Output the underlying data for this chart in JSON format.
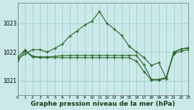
{
  "background_color": "#cbe9e9",
  "grid_color": "#9ecfcf",
  "line_color": "#2d6a2d",
  "xlabel": "Graphe pression niveau de la mer (hPa)",
  "xlabel_fontsize": 6.5,
  "xlim": [
    0,
    23
  ],
  "ylim": [
    1020.5,
    1023.7
  ],
  "yticks": [
    1021,
    1022,
    1023
  ],
  "xticks": [
    0,
    1,
    2,
    3,
    4,
    5,
    6,
    7,
    8,
    9,
    10,
    11,
    12,
    13,
    14,
    15,
    16,
    17,
    18,
    19,
    20,
    21,
    22,
    23
  ],
  "s1_x": [
    0,
    1,
    2,
    3,
    4,
    5,
    6,
    7,
    8,
    9,
    10,
    11,
    12,
    13,
    14,
    15,
    16,
    17,
    18,
    19,
    20,
    21,
    22,
    23
  ],
  "s1_y": [
    1021.75,
    1021.93,
    1022.08,
    1022.08,
    1022.0,
    1022.13,
    1022.27,
    1022.55,
    1022.73,
    1022.93,
    1023.07,
    1023.4,
    1023.0,
    1022.8,
    1022.57,
    1022.2,
    1022.0,
    1021.8,
    1021.53,
    1021.63,
    1021.08,
    1022.0,
    1022.1,
    1022.15
  ],
  "s2_x": [
    0,
    1,
    2,
    3,
    4,
    5,
    6,
    7,
    8,
    9,
    10,
    11,
    12,
    13,
    14,
    15,
    16,
    17,
    18,
    19,
    20,
    21,
    22,
    23
  ],
  "s2_y": [
    1021.82,
    1022.07,
    1021.85,
    1021.83,
    1021.83,
    1021.85,
    1021.87,
    1021.88,
    1021.88,
    1021.88,
    1021.88,
    1021.88,
    1021.88,
    1021.88,
    1021.88,
    1021.88,
    1021.88,
    1021.55,
    1021.05,
    1021.05,
    1021.12,
    1021.97,
    1022.1,
    1022.13
  ],
  "s3_x": [
    0,
    1,
    2,
    3,
    4,
    5,
    6,
    7,
    8,
    9,
    10,
    11,
    12,
    13,
    14,
    15,
    16,
    17,
    18,
    19,
    20,
    21,
    22,
    23
  ],
  "s3_y": [
    1021.7,
    1022.03,
    1021.82,
    1021.8,
    1021.8,
    1021.8,
    1021.8,
    1021.8,
    1021.8,
    1021.8,
    1021.8,
    1021.8,
    1021.8,
    1021.8,
    1021.8,
    1021.8,
    1021.68,
    1021.32,
    1021.02,
    1021.02,
    1021.08,
    1021.93,
    1022.03,
    1022.08
  ]
}
